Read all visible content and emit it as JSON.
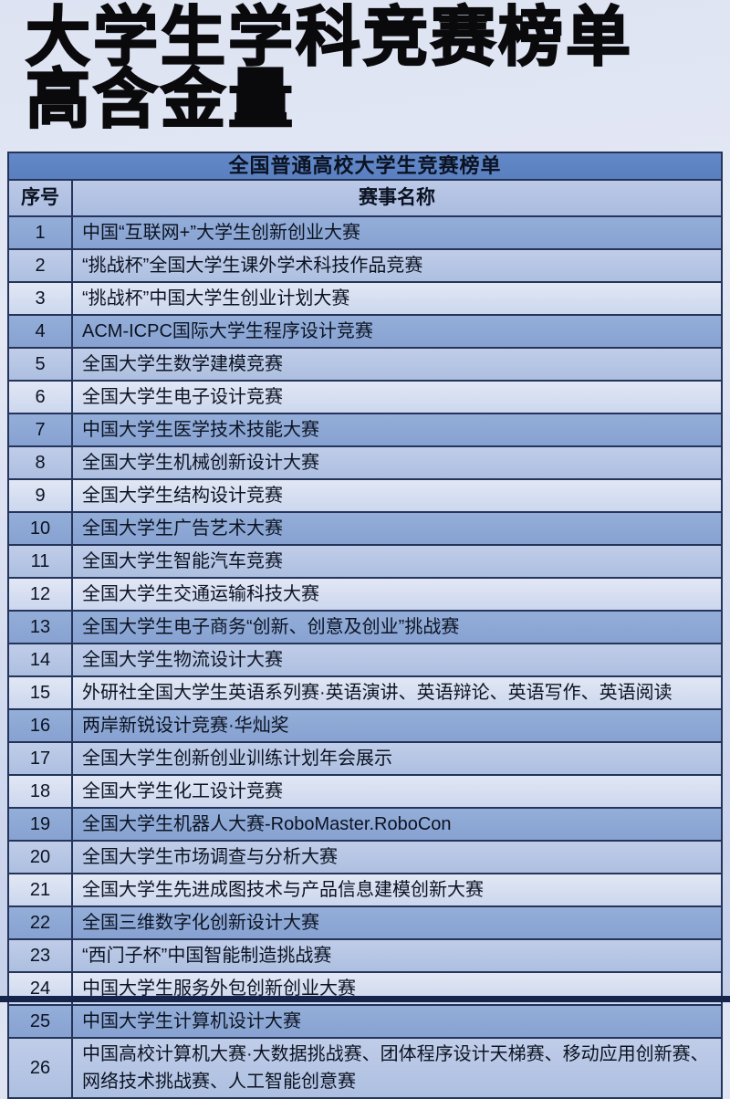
{
  "title": {
    "line1": "大学生学科竞赛榜单",
    "line2": "高含金量"
  },
  "table": {
    "band_title": "全国普通高校大学生竞赛榜单",
    "columns": {
      "index": "序号",
      "name": "赛事名称"
    },
    "rows": [
      {
        "num": "1",
        "name": "中国“互联网+”大学生创新创业大赛"
      },
      {
        "num": "2",
        "name": "“挑战杯”全国大学生课外学术科技作品竞赛"
      },
      {
        "num": "3",
        "name": "“挑战杯”中国大学生创业计划大赛"
      },
      {
        "num": "4",
        "name": "ACM-ICPC国际大学生程序设计竞赛"
      },
      {
        "num": "5",
        "name": "全国大学生数学建模竞赛"
      },
      {
        "num": "6",
        "name": "全国大学生电子设计竞赛"
      },
      {
        "num": "7",
        "name": "中国大学生医学技术技能大赛"
      },
      {
        "num": "8",
        "name": "全国大学生机械创新设计大赛"
      },
      {
        "num": "9",
        "name": "全国大学生结构设计竞赛"
      },
      {
        "num": "10",
        "name": "全国大学生广告艺术大赛"
      },
      {
        "num": "11",
        "name": "全国大学生智能汽车竞赛"
      },
      {
        "num": "12",
        "name": "全国大学生交通运输科技大赛"
      },
      {
        "num": "13",
        "name": "全国大学生电子商务“创新、创意及创业”挑战赛"
      },
      {
        "num": "14",
        "name": "全国大学生物流设计大赛"
      },
      {
        "num": "15",
        "name": "外研社全国大学生英语系列赛·英语演讲、英语辩论、英语写作、英语阅读"
      },
      {
        "num": "16",
        "name": "两岸新锐设计竞赛·华灿奖"
      },
      {
        "num": "17",
        "name": "全国大学生创新创业训练计划年会展示"
      },
      {
        "num": "18",
        "name": "全国大学生化工设计竞赛"
      },
      {
        "num": "19",
        "name": "全国大学生机器人大赛-RoboMaster.RoboCon"
      },
      {
        "num": "20",
        "name": "全国大学生市场调查与分析大赛"
      },
      {
        "num": "21",
        "name": "全国大学生先进成图技术与产品信息建模创新大赛"
      },
      {
        "num": "22",
        "name": "全国三维数字化创新设计大赛"
      },
      {
        "num": "23",
        "name": "“西门子杯”中国智能制造挑战赛"
      },
      {
        "num": "24",
        "name": "中国大学生服务外包创新创业大赛"
      },
      {
        "num": "25",
        "name": "中国大学生计算机设计大赛"
      },
      {
        "num": "26",
        "name": "中国高校计算机大赛·大数据挑战赛、团体程序设计天梯赛、移动应用创新赛、网络技术挑战赛、人工智能创意赛"
      }
    ]
  },
  "colors": {
    "page_background_top": "#e4e8f5",
    "page_background_bottom": "#c3cee9",
    "title_text": "#0a0a0c",
    "band_background": "#5e84c4",
    "header_row_background": "#b4c3e4",
    "row_dark": "#8ea9d5",
    "row_medium": "#b7c6e5",
    "row_light": "#d7dff1",
    "border": "#24345a",
    "bottom_bar": "#16244c",
    "row_text": "#0c1322"
  }
}
